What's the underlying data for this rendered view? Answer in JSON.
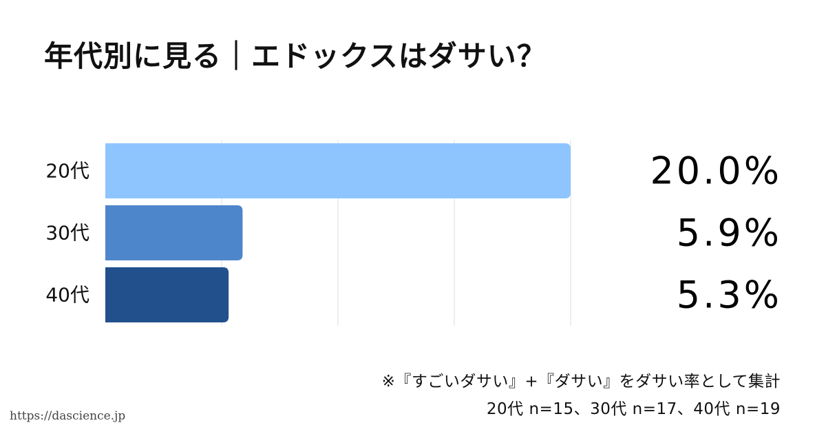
{
  "title": "年代別に見る｜エドックスはダサい？",
  "chart_data": {
    "type": "bar",
    "orientation": "horizontal",
    "title": "年代別に見る｜エドックスはダサい？",
    "categories": [
      "20代",
      "30代",
      "40代"
    ],
    "values": [
      20.0,
      5.9,
      5.3
    ],
    "value_labels": [
      "20.0%",
      "5.9%",
      "5.3%"
    ],
    "bar_colors": [
      "#8ec5ff",
      "#4e86cc",
      "#22508c"
    ],
    "xlim": [
      0,
      20
    ],
    "grid": true,
    "xlabel": "",
    "ylabel": ""
  },
  "notes": {
    "line1": "※『すごいダサい』+『ダサい』をダサい率として集計",
    "line2": "20代 n=15、30代 n=17、40代 n=19"
  },
  "source_url": "https://dascience.jp"
}
